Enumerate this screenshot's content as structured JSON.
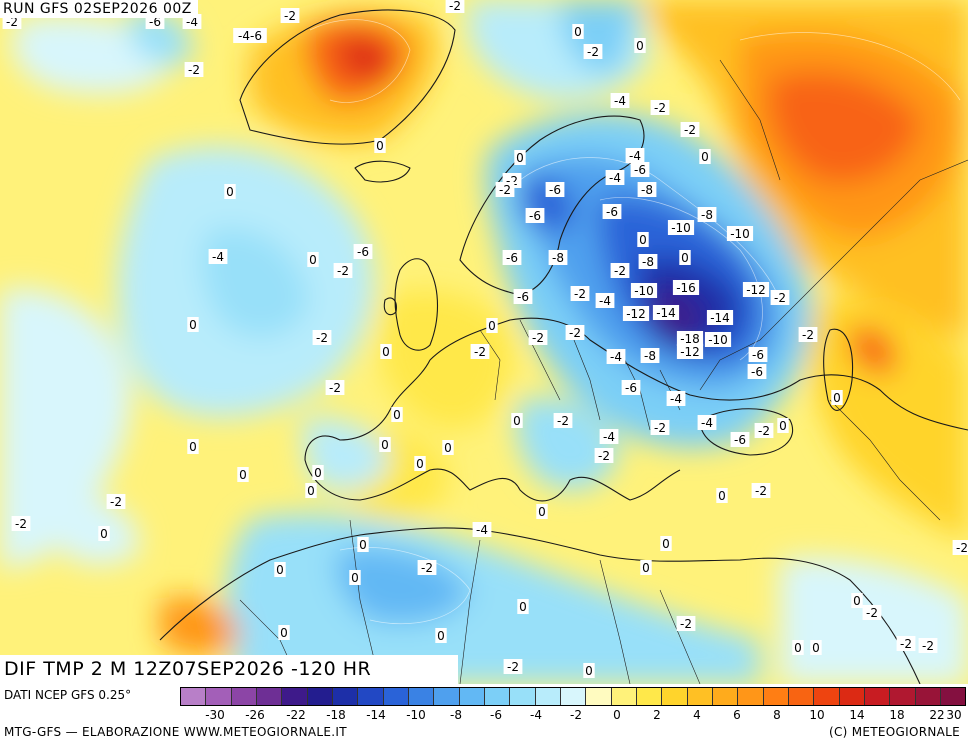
{
  "header": {
    "run_label": "RUN GFS 02SEP2026 00Z"
  },
  "valid_label": "DIF TMP 2 M 12Z07SEP2026 -120 HR",
  "footer": {
    "source": "DATI NCEP GFS 0.25°",
    "credit": "MTG-GFS — ELABORAZIONE WWW.METEOGIORNALE.IT",
    "copyright": "(C) METEOGIORNALE"
  },
  "colorbar": {
    "colors": [
      "#b87fc8",
      "#a35fb8",
      "#8c45a6",
      "#6e2f95",
      "#3e1a8a",
      "#231d8f",
      "#1d2fa8",
      "#2248c4",
      "#2a63d8",
      "#3a82e4",
      "#4fa0ee",
      "#62b8f4",
      "#7ccff7",
      "#98e0f9",
      "#b8ecfb",
      "#d8f6fc",
      "#fffbc0",
      "#fff27a",
      "#ffe84a",
      "#ffd42c",
      "#ffc024",
      "#ffab1c",
      "#ff9618",
      "#ff7e14",
      "#f86412",
      "#ee4410",
      "#dc2a14",
      "#c81c22",
      "#b01830",
      "#981438",
      "#841040"
    ],
    "tick_labels": [
      "-30",
      "-26",
      "-22",
      "-18",
      "-14",
      "-10",
      "-8",
      "-6",
      "-4",
      "-2",
      "0",
      "2",
      "4",
      "6",
      "8",
      "10",
      "14",
      "18",
      "22",
      "30"
    ]
  },
  "map_labels": [
    "-2",
    "-6",
    "-4",
    "-2",
    "-2",
    "-4-6",
    "0",
    "-2",
    "0",
    "-2",
    "0",
    "-4",
    "-2",
    "-2",
    "0",
    "-4",
    "-6",
    "0",
    "-2",
    "0",
    "-2",
    "-4",
    "-6",
    "-8",
    "-6",
    "-8",
    "-6",
    "-10",
    "-10",
    "-6",
    "0",
    "0",
    "-8",
    "-8",
    "-6",
    "-4",
    "0",
    "-2",
    "-2",
    "-2",
    "-4",
    "-6",
    "-2",
    "-10",
    "-16",
    "-14",
    "-12",
    "-2",
    "0",
    "0",
    "-12",
    "-14",
    "-2",
    "-2",
    "-2",
    "-18",
    "-10",
    "0",
    "-2",
    "-6",
    "-4",
    "-8",
    "-12",
    "-6",
    "-2",
    "0",
    "-6",
    "-4",
    "0",
    "-2",
    "-2",
    "-4",
    "-6",
    "0",
    "0",
    "-2",
    "-4",
    "0",
    "0",
    "0",
    "-2",
    "0",
    "0",
    "0",
    "0",
    "-2",
    "-2",
    "0",
    "0",
    "-4",
    "0",
    "0",
    "0",
    "-2",
    "-2",
    "0",
    "0",
    "-2",
    "0",
    "0",
    "-2",
    "0",
    "-2",
    "0",
    "0",
    "-2",
    "-2",
    "0",
    "0",
    "-2",
    "0"
  ]
}
